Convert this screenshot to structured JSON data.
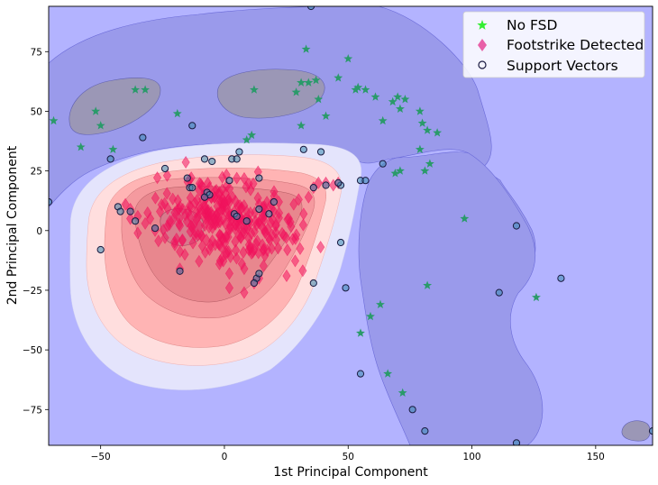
{
  "chart_data": {
    "type": "scatter",
    "title": "",
    "xlabel": "1st Principal Component",
    "ylabel": "2nd Principal Component",
    "xlim": [
      -71,
      173
    ],
    "ylim": [
      -90,
      94
    ],
    "xticks": [
      -50,
      0,
      50,
      100,
      150
    ],
    "yticks": [
      -75,
      -50,
      -25,
      0,
      25,
      50,
      75
    ],
    "grid": false,
    "legend_position": "top-right",
    "colors": {
      "background_region": "#b3b3ff",
      "mid_region": "#9a9aeb",
      "inner_region": "#9b97b6",
      "no_fsd": "#2a9a6a",
      "fsd": "#f0125c",
      "support_vector_edge": "#1a1a40",
      "support_vector_fill": "#3a8ab0",
      "contour_levels": [
        "#e4e4fc",
        "#ffdede",
        "#ffb4b4",
        "#f59a9f",
        "#e8878e"
      ]
    },
    "series": [
      {
        "name": "No FSD",
        "marker": "star",
        "legend_marker_color": "#33ee33",
        "points": [
          [
            -69,
            46
          ],
          [
            -58,
            35
          ],
          [
            -52,
            50
          ],
          [
            -50,
            44
          ],
          [
            -45,
            34
          ],
          [
            -36,
            59
          ],
          [
            -32,
            59
          ],
          [
            -19,
            49
          ],
          [
            9,
            38
          ],
          [
            11,
            40
          ],
          [
            12,
            59
          ],
          [
            29,
            58
          ],
          [
            31,
            44
          ],
          [
            31,
            62
          ],
          [
            33,
            76
          ],
          [
            34,
            62
          ],
          [
            37,
            63
          ],
          [
            38,
            55
          ],
          [
            41,
            48
          ],
          [
            46,
            64
          ],
          [
            50,
            72
          ],
          [
            53,
            59
          ],
          [
            54,
            60
          ],
          [
            57,
            59
          ],
          [
            61,
            56
          ],
          [
            64,
            46
          ],
          [
            68,
            54
          ],
          [
            70,
            56
          ],
          [
            71,
            51
          ],
          [
            73,
            55
          ],
          [
            69,
            24
          ],
          [
            71,
            25
          ],
          [
            79,
            50
          ],
          [
            79,
            34
          ],
          [
            80,
            45
          ],
          [
            81,
            25
          ],
          [
            82,
            42
          ],
          [
            83,
            28
          ],
          [
            86,
            41
          ],
          [
            97,
            5
          ],
          [
            82,
            -23
          ],
          [
            55,
            -43
          ],
          [
            59,
            -36
          ],
          [
            63,
            -31
          ],
          [
            66,
            -60
          ],
          [
            72,
            -68
          ],
          [
            126,
            -28
          ]
        ]
      },
      {
        "name": "Footstrike Detected",
        "marker": "diamond",
        "legend_marker_color": "#e860a8",
        "cluster": {
          "x_center": 3,
          "x_spread": 18,
          "y_center": 4,
          "y_spread": 12,
          "count": 260
        },
        "points": [
          [
            -40,
            11
          ],
          [
            -38,
            9
          ],
          [
            -35,
            6
          ],
          [
            -32,
            3
          ],
          [
            -30,
            5
          ],
          [
            -28,
            0
          ],
          [
            -26,
            8
          ],
          [
            -24,
            -3
          ],
          [
            -22,
            4
          ],
          [
            -20,
            -6
          ],
          [
            -18,
            2
          ],
          [
            -16,
            -10
          ],
          [
            -14,
            6
          ],
          [
            -12,
            -2
          ],
          [
            -10,
            10
          ],
          [
            -8,
            16
          ],
          [
            -6,
            -8
          ],
          [
            -4,
            14
          ],
          [
            -2,
            -14
          ],
          [
            0,
            12
          ],
          [
            2,
            -18
          ],
          [
            4,
            8
          ],
          [
            6,
            -2
          ],
          [
            8,
            -16
          ],
          [
            10,
            4
          ],
          [
            12,
            -8
          ],
          [
            14,
            11
          ],
          [
            16,
            6
          ],
          [
            18,
            -3
          ],
          [
            20,
            8
          ],
          [
            22,
            12
          ],
          [
            24,
            -2
          ],
          [
            26,
            5
          ],
          [
            28,
            11
          ],
          [
            30,
            13
          ],
          [
            32,
            7
          ],
          [
            34,
            14
          ],
          [
            36,
            18
          ],
          [
            38,
            20
          ],
          [
            41,
            20
          ],
          [
            44,
            19
          ],
          [
            46,
            20
          ],
          [
            -2,
            16
          ],
          [
            -6,
            18
          ],
          [
            -10,
            2
          ],
          [
            6,
            6
          ],
          [
            10,
            -6
          ],
          [
            14,
            -20
          ],
          [
            12,
            -22
          ],
          [
            -18,
            -16
          ],
          [
            -38,
            5
          ],
          [
            -35,
            -1
          ],
          [
            2,
            -24
          ],
          [
            8,
            -26
          ],
          [
            5,
            22
          ]
        ]
      }
    ],
    "support_vectors": [
      [
        35,
        94
      ],
      [
        -71,
        12
      ],
      [
        -33,
        39
      ],
      [
        -46,
        30
      ],
      [
        -13,
        44
      ],
      [
        6,
        33
      ],
      [
        3,
        30
      ],
      [
        5,
        30
      ],
      [
        32,
        34
      ],
      [
        39,
        33
      ],
      [
        -24,
        26
      ],
      [
        -15,
        22
      ],
      [
        -8,
        30
      ],
      [
        -5,
        29
      ],
      [
        2,
        21
      ],
      [
        14,
        22
      ],
      [
        55,
        21
      ],
      [
        57,
        21
      ],
      [
        -14,
        18
      ],
      [
        -13,
        18
      ],
      [
        -7,
        16
      ],
      [
        -6,
        15
      ],
      [
        -8,
        14
      ],
      [
        -43,
        10
      ],
      [
        -42,
        8
      ],
      [
        -38,
        8
      ],
      [
        -36,
        4
      ],
      [
        -28,
        1
      ],
      [
        -18,
        -17
      ],
      [
        4,
        7
      ],
      [
        5,
        6
      ],
      [
        9,
        4
      ],
      [
        14,
        9
      ],
      [
        18,
        7
      ],
      [
        20,
        12
      ],
      [
        47,
        19
      ],
      [
        46,
        20
      ],
      [
        36,
        18
      ],
      [
        41,
        19
      ],
      [
        13,
        -20
      ],
      [
        12,
        -22
      ],
      [
        14,
        -18
      ],
      [
        -50,
        -8
      ],
      [
        47,
        -5
      ],
      [
        36,
        -22
      ],
      [
        49,
        -24
      ],
      [
        64,
        28
      ],
      [
        55,
        -60
      ],
      [
        76,
        -75
      ],
      [
        81,
        -84
      ],
      [
        111,
        -26
      ],
      [
        118,
        2
      ],
      [
        136,
        -20
      ],
      [
        118,
        -89
      ],
      [
        173,
        -84
      ]
    ]
  },
  "legend": {
    "items": [
      {
        "label": "No FSD",
        "symbol": "star",
        "color": "#33ee33"
      },
      {
        "label": "Footstrike Detected",
        "symbol": "diamond",
        "color": "#e860a8"
      },
      {
        "label": "Support Vectors",
        "symbol": "circle",
        "color": "#1a1a40"
      }
    ]
  }
}
